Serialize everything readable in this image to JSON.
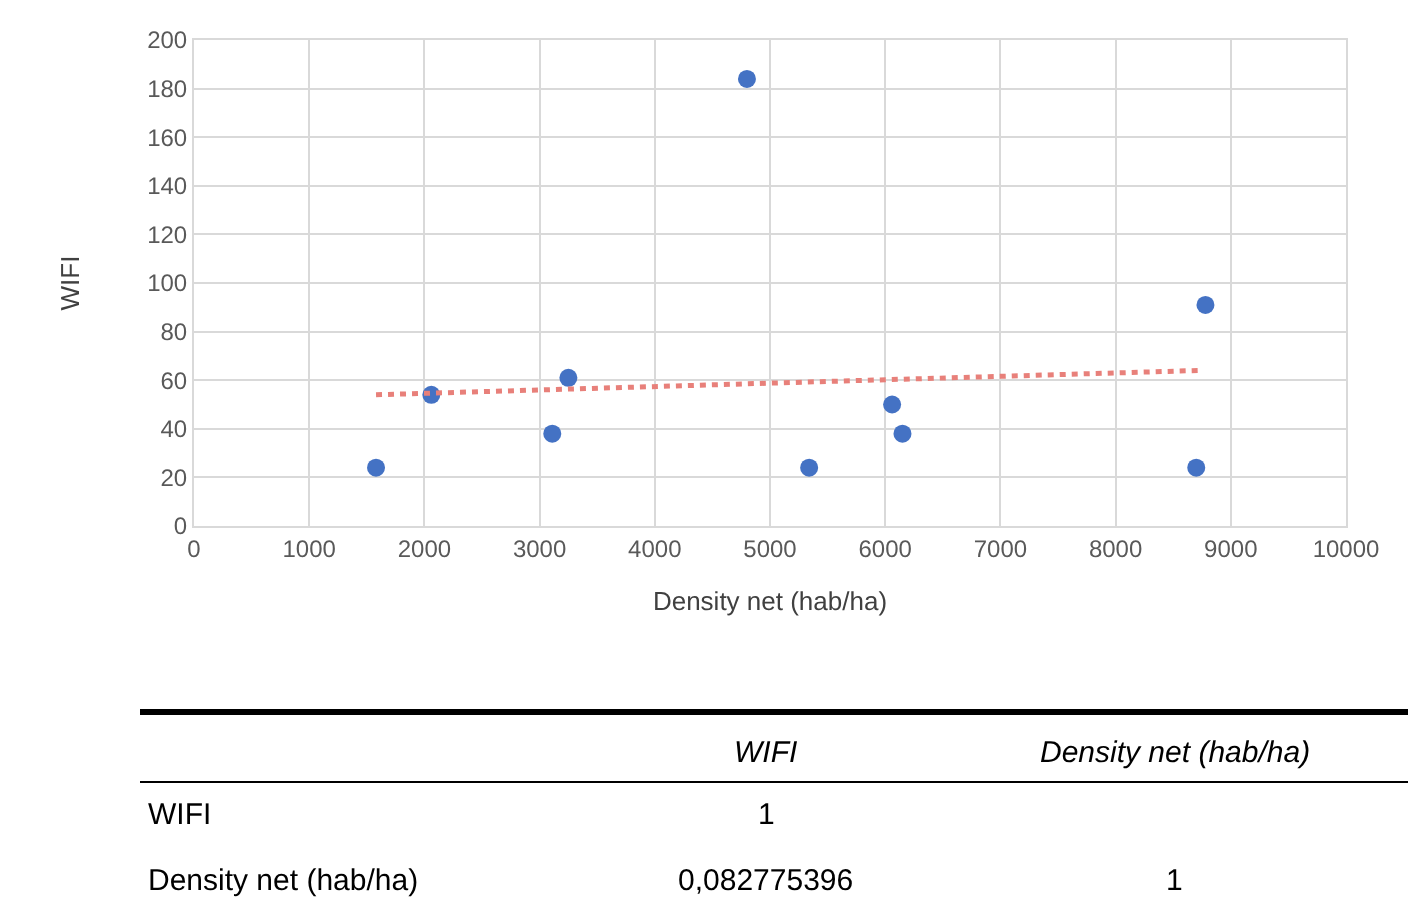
{
  "chart_data": {
    "type": "scatter",
    "xlabel": "Density net (hab/ha)",
    "ylabel": "WIFI",
    "series": [
      {
        "color": "#4472c4",
        "marker": "circle",
        "x": [
          1580,
          2060,
          3110,
          3250,
          4800,
          5340,
          6060,
          6150,
          8700,
          8780
        ],
        "values": [
          24,
          54,
          38,
          61,
          184,
          24,
          50,
          38,
          24,
          91
        ]
      },
      {
        "type": "line",
        "color": "#e8807a",
        "line_style": "dotted",
        "marker": "none",
        "x": [
          1580,
          8720
        ],
        "values": [
          54,
          64
        ]
      }
    ],
    "xlim": [
      0,
      10000
    ],
    "xticks": [
      0,
      1000,
      2000,
      3000,
      4000,
      5000,
      6000,
      7000,
      8000,
      9000,
      10000
    ],
    "ylim": [
      0,
      200
    ],
    "yticks": [
      0,
      20,
      40,
      60,
      80,
      100,
      120,
      140,
      160,
      180,
      200
    ],
    "grid": true,
    "annotations": [
      "WIFI",
      "Density net (hab/ha)",
      "WIFI",
      "1",
      "Density net (hab/ha)",
      "0,082775396",
      "1"
    ]
  }
}
